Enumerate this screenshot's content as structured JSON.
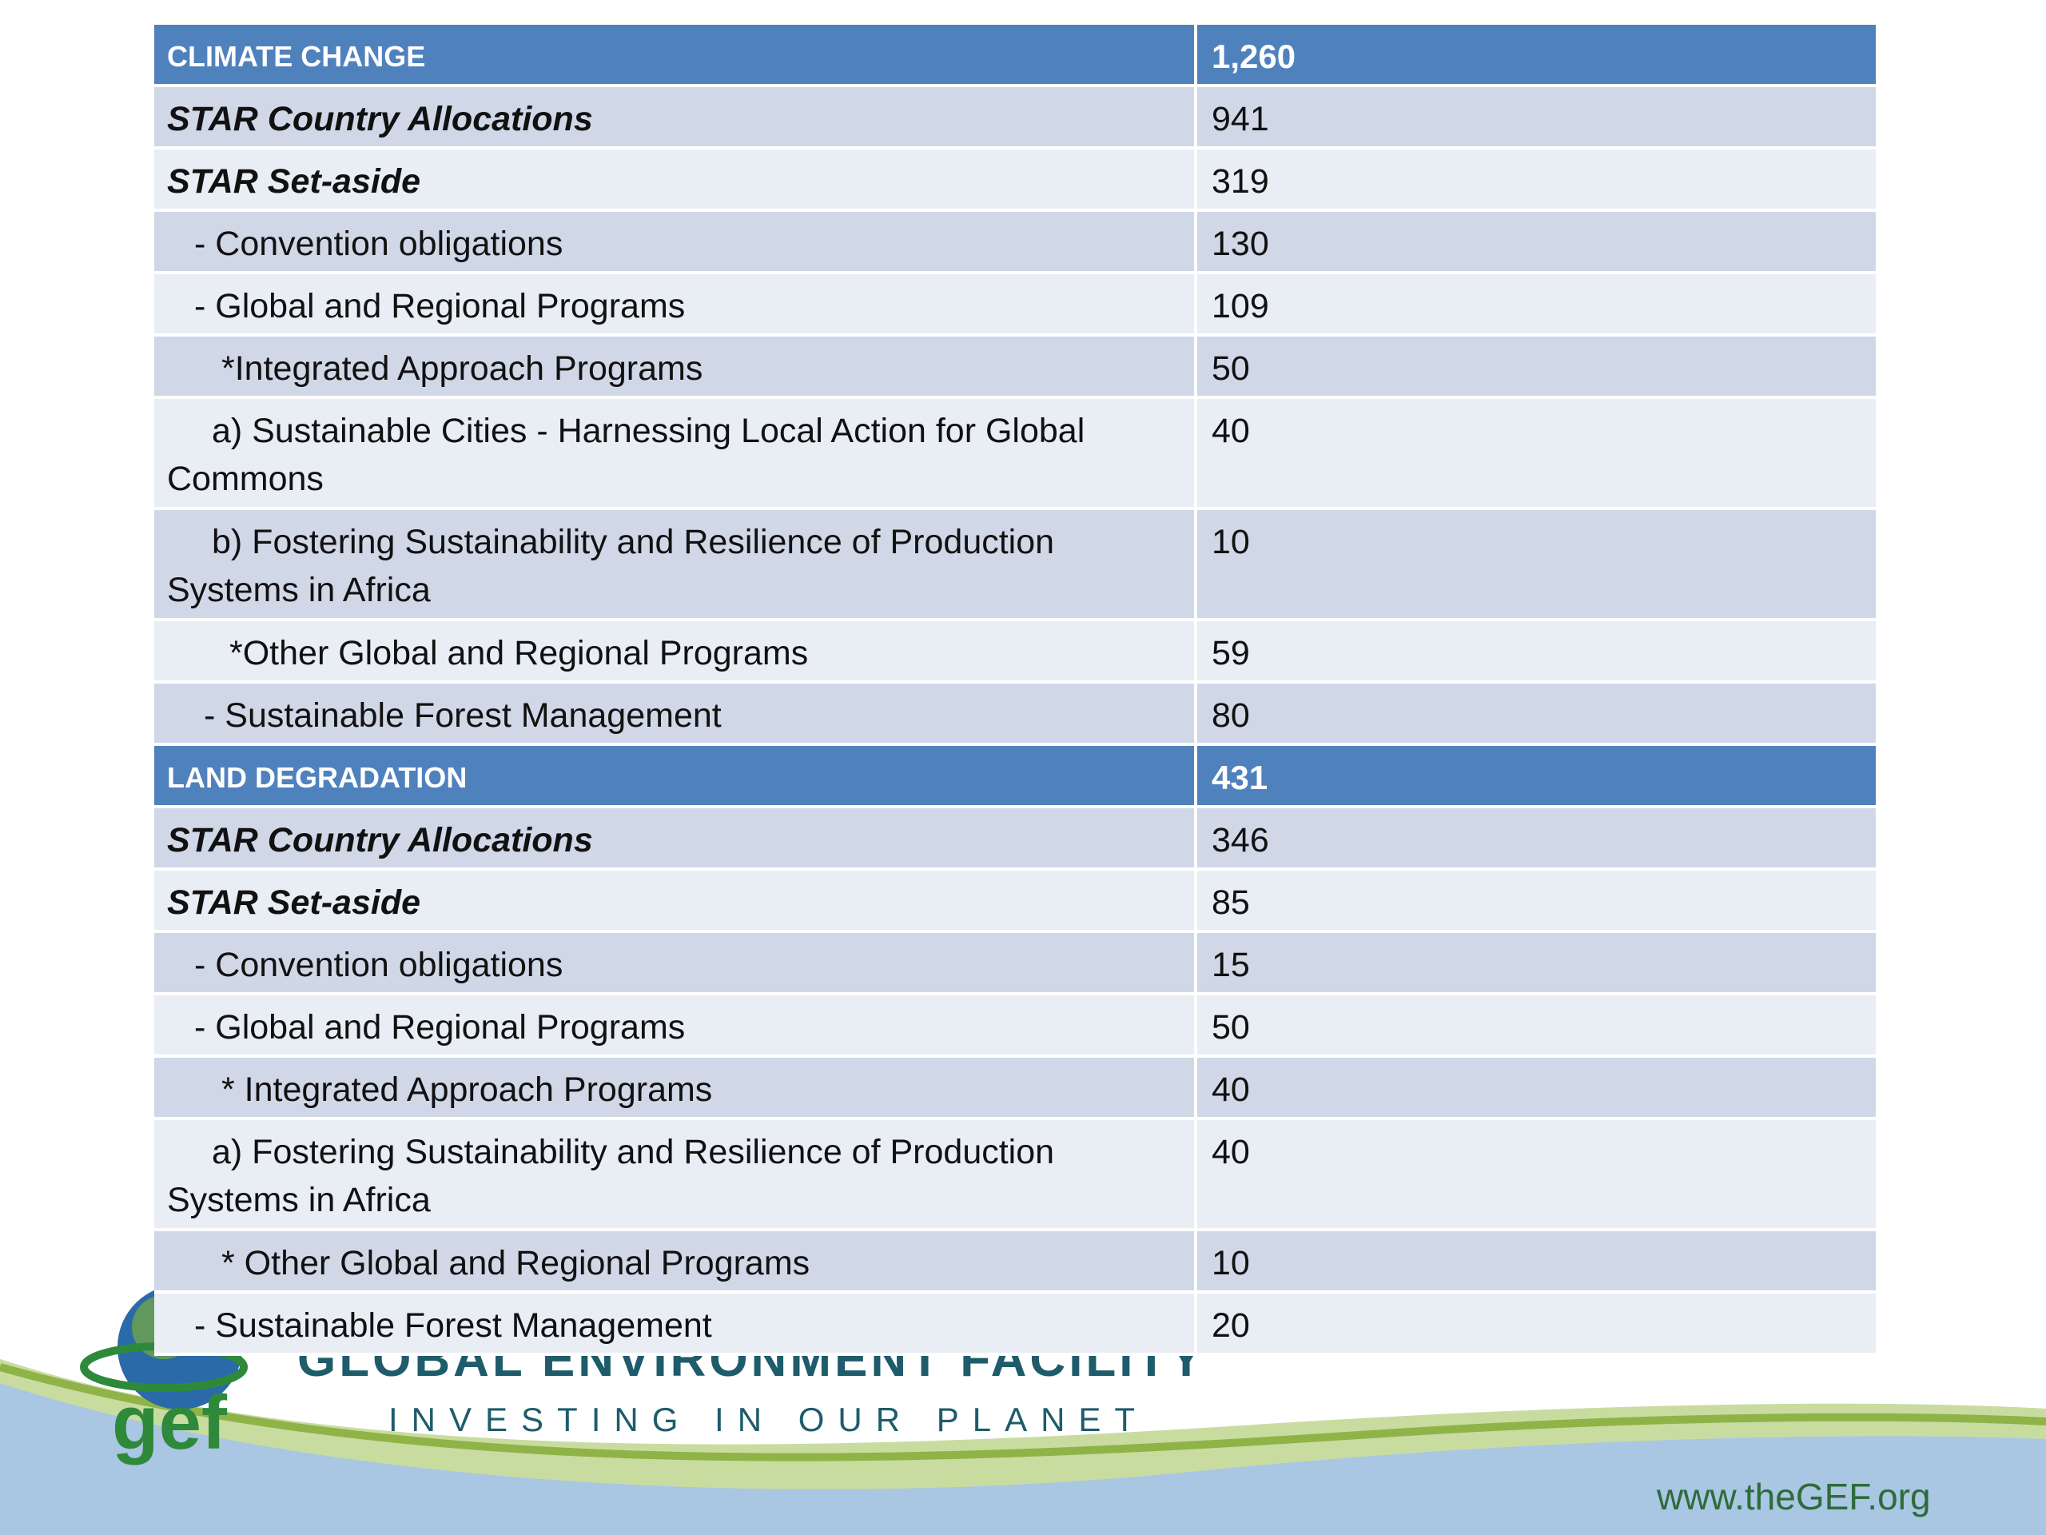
{
  "table": {
    "rows": [
      [
        "CLIMATE CHANGE",
        "1,260"
      ],
      [
        "STAR Country Allocations",
        "941"
      ],
      [
        "STAR Set-aside",
        "319"
      ],
      [
        "- Convention obligations",
        "130"
      ],
      [
        "- Global and Regional Programs",
        "109"
      ],
      [
        "*Integrated Approach Programs",
        "50"
      ],
      [
        "a) Sustainable Cities - Harnessing Local Action for Global Commons",
        "40"
      ],
      [
        "b) Fostering Sustainability and Resilience of Production Systems in Africa",
        "10"
      ],
      [
        "*Other Global and Regional Programs",
        "59"
      ],
      [
        "- Sustainable Forest Management",
        "80"
      ],
      [
        "LAND DEGRADATION",
        "431"
      ],
      [
        "STAR Country Allocations",
        "346"
      ],
      [
        "STAR Set-aside",
        "85"
      ],
      [
        "- Convention obligations",
        "15"
      ],
      [
        "- Global and Regional Programs",
        "50"
      ],
      [
        "* Integrated Approach Programs",
        "40"
      ],
      [
        "a) Fostering Sustainability and Resilience of Production Systems in Africa",
        "40"
      ],
      [
        "* Other Global and Regional Programs",
        "10"
      ],
      [
        "- Sustainable Forest Management",
        "20"
      ]
    ]
  },
  "footer": {
    "logo": "gef",
    "organization": "GLOBAL ENVIRONMENT FACILITY",
    "tagline": "INVESTING IN OUR PLANET",
    "url": "www.theGEF.org"
  }
}
